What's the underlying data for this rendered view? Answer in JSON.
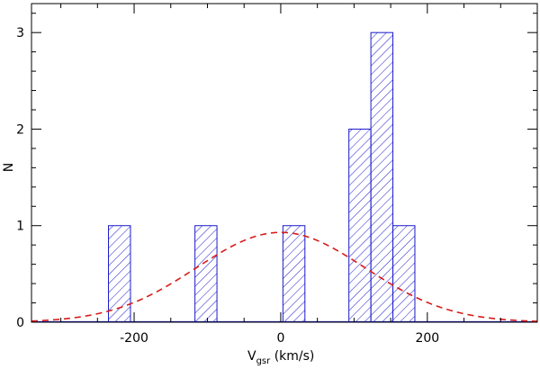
{
  "chart_data": {
    "type": "bar",
    "subtype": "histogram",
    "xlabel_main": "V",
    "xlabel_sub": "gsr",
    "xlabel_units": " (km/s)",
    "ylabel": "N",
    "xlim": [
      -340,
      350
    ],
    "ylim": [
      0,
      3.3
    ],
    "x_ticks": [
      -200,
      0,
      200
    ],
    "x_tick_labels": [
      "-200",
      "0",
      "200"
    ],
    "y_ticks": [
      0,
      1,
      2,
      3
    ],
    "y_tick_labels": [
      "0",
      "1",
      "2",
      "3"
    ],
    "x_minor_step": 50,
    "y_minor_step": 0.2,
    "bins": [
      {
        "x0": -235,
        "x1": -205,
        "count": 1
      },
      {
        "x0": -117,
        "x1": -87,
        "count": 1
      },
      {
        "x0": 3,
        "x1": 33,
        "count": 1
      },
      {
        "x0": 93,
        "x1": 123,
        "count": 2
      },
      {
        "x0": 123,
        "x1": 153,
        "count": 3
      },
      {
        "x0": 153,
        "x1": 183,
        "count": 1
      }
    ],
    "fit_curve": {
      "kind": "gaussian",
      "mean": 0,
      "sigma": 115,
      "amplitude": 0.93,
      "style": "dashed"
    },
    "colors": {
      "bars": "#1a1acc",
      "curve": "#d81b1b",
      "axes": "#000000"
    }
  }
}
